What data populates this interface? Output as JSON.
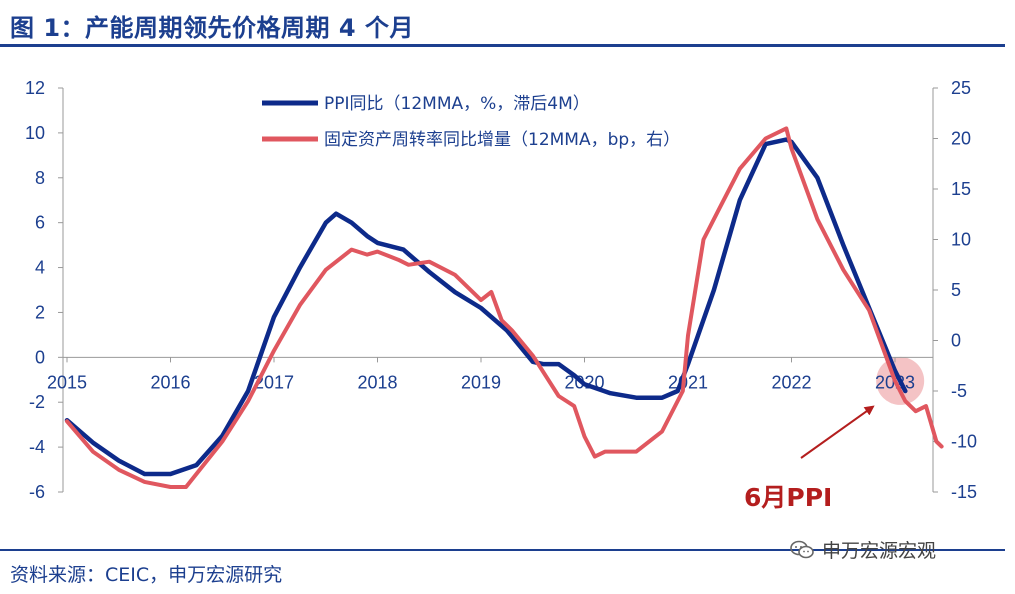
{
  "title": "图 1：产能周期领先价格周期 4 个月",
  "source": "资料来源：CEIC，申万宏源研究",
  "watermark": "申万宏源宏观",
  "chart_data": {
    "type": "line",
    "title": "图 1：产能周期领先价格周期 4 个月",
    "x_labels": [
      "2015",
      "2016",
      "2017",
      "2018",
      "2019",
      "2020",
      "2021",
      "2022",
      "2023"
    ],
    "y_left": {
      "min": -6,
      "max": 12,
      "ticks": [
        -6,
        -4,
        -2,
        0,
        2,
        4,
        6,
        8,
        10,
        12
      ]
    },
    "y_right": {
      "min": -15,
      "max": 25,
      "ticks": [
        -15,
        -10,
        -5,
        0,
        5,
        10,
        15,
        20,
        25
      ]
    },
    "series": [
      {
        "name": "PPI同比（12MMA，%，滞后4M）",
        "axis": "left",
        "color": "#0d2a8a",
        "x": [
          2015.0,
          2015.25,
          2015.5,
          2015.75,
          2016.0,
          2016.25,
          2016.5,
          2016.75,
          2017.0,
          2017.25,
          2017.5,
          2017.6,
          2017.75,
          2017.9,
          2018.0,
          2018.25,
          2018.5,
          2018.75,
          2019.0,
          2019.25,
          2019.5,
          2019.6,
          2019.75,
          2019.9,
          2020.0,
          2020.25,
          2020.5,
          2020.75,
          2020.9,
          2021.0,
          2021.25,
          2021.5,
          2021.75,
          2021.95,
          2022.0,
          2022.25,
          2022.5,
          2022.75,
          2023.0,
          2023.1
        ],
        "values": [
          -2.8,
          -3.8,
          -4.6,
          -5.2,
          -5.2,
          -4.8,
          -3.5,
          -1.5,
          1.8,
          4.0,
          6.0,
          6.4,
          6.0,
          5.4,
          5.1,
          4.8,
          3.8,
          2.9,
          2.2,
          1.2,
          -0.2,
          -0.3,
          -0.3,
          -0.8,
          -1.2,
          -1.6,
          -1.8,
          -1.8,
          -1.5,
          -0.3,
          3.0,
          7.0,
          9.5,
          9.7,
          9.6,
          8.0,
          5.0,
          2.2,
          -0.6,
          -1.5
        ]
      },
      {
        "name": "固定资产周转率同比增量（12MMA，bp，右）",
        "axis": "right",
        "color": "#e0575f",
        "x": [
          2015.0,
          2015.25,
          2015.5,
          2015.75,
          2016.0,
          2016.15,
          2016.5,
          2016.75,
          2017.0,
          2017.25,
          2017.5,
          2017.75,
          2017.9,
          2018.0,
          2018.2,
          2018.3,
          2018.5,
          2018.75,
          2019.0,
          2019.1,
          2019.2,
          2019.3,
          2019.5,
          2019.75,
          2019.9,
          2020.0,
          2020.1,
          2020.2,
          2020.25,
          2020.5,
          2020.75,
          2020.95,
          2021.0,
          2021.15,
          2021.3,
          2021.5,
          2021.75,
          2021.95,
          2022.0,
          2022.25,
          2022.5,
          2022.75,
          2023.0,
          2023.1,
          2023.2,
          2023.3,
          2023.4,
          2023.45
        ],
        "values": [
          -8.0,
          -11.0,
          -12.8,
          -14.0,
          -14.5,
          -14.5,
          -10.0,
          -6.0,
          -1.0,
          3.5,
          7.0,
          9.0,
          8.5,
          8.8,
          8.0,
          7.5,
          7.8,
          6.5,
          4.0,
          4.8,
          2.0,
          1.0,
          -1.5,
          -5.5,
          -6.5,
          -9.5,
          -11.5,
          -11.0,
          -11.0,
          -11.0,
          -9.0,
          -5.0,
          0.5,
          10.0,
          13.0,
          17.0,
          20.0,
          21.0,
          19.0,
          12.0,
          7.0,
          3.0,
          -4.0,
          -6.0,
          -7.0,
          -6.5,
          -10.0,
          -10.5
        ]
      }
    ],
    "annotation": {
      "label": "6月PPI",
      "target_x": 2023.0
    }
  }
}
